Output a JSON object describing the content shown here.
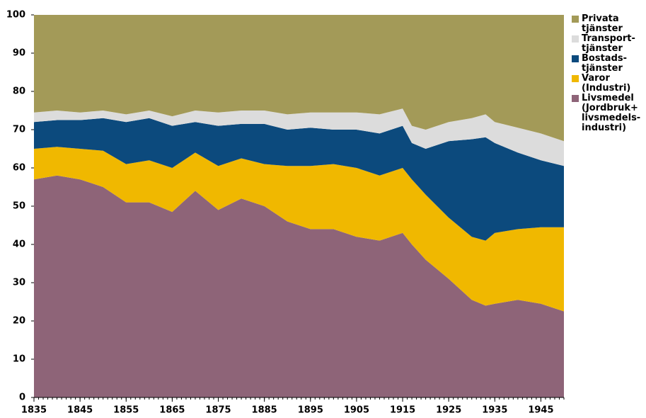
{
  "chart_data": {
    "type": "stacked_area",
    "x": [
      1835,
      1840,
      1845,
      1850,
      1855,
      1860,
      1865,
      1870,
      1875,
      1880,
      1885,
      1890,
      1895,
      1900,
      1905,
      1910,
      1915,
      1917,
      1920,
      1925,
      1930,
      1933,
      1935,
      1940,
      1945,
      1950
    ],
    "series": [
      {
        "name": "Livsmedel\n(Jordbruk+\nlivsmedels-\nindustri)",
        "color": "#8e6478",
        "values": [
          57,
          58,
          57,
          55,
          51,
          51,
          48.5,
          54,
          49,
          52,
          50,
          46,
          44,
          44,
          42,
          41,
          43,
          40,
          36,
          31,
          25.5,
          24,
          24.5,
          25.5,
          24.5,
          22.5
        ]
      },
      {
        "name": "Varor\n(Industri)",
        "color": "#f0b800",
        "values": [
          8,
          7.5,
          8,
          9.5,
          10,
          11,
          11.5,
          10,
          11.5,
          10.5,
          11,
          14.5,
          16.5,
          17,
          18,
          17,
          17,
          17,
          17,
          16,
          16.5,
          17,
          18.5,
          18.5,
          20,
          22
        ]
      },
      {
        "name": "Bostads-\ntjänster",
        "color": "#0c4a7d",
        "values": [
          7,
          7,
          7.5,
          8.5,
          11,
          11,
          11,
          8,
          10.5,
          9,
          10.5,
          9.5,
          10,
          9,
          10,
          11,
          11,
          9.5,
          12,
          20,
          25.5,
          27,
          23.5,
          20,
          17.5,
          16
        ]
      },
      {
        "name": "Transport-\ntjänster",
        "color": "#dcdcdc",
        "values": [
          2.5,
          2.5,
          2,
          2,
          2,
          2,
          2.5,
          3,
          3.5,
          3.5,
          3.5,
          4,
          4,
          4.5,
          4.5,
          5,
          4.5,
          4.5,
          5,
          5,
          5.5,
          6,
          5.5,
          6.5,
          7,
          6.5
        ]
      },
      {
        "name": "Privata\ntjänster",
        "color": "#a39a58",
        "values": [
          25.5,
          25,
          25.5,
          25,
          26,
          25,
          26.5,
          25,
          25.5,
          25,
          25,
          26,
          25.5,
          25.5,
          25.5,
          26,
          24.5,
          29,
          30,
          28,
          27,
          26,
          28,
          29.5,
          31,
          33
        ]
      }
    ],
    "xlim": [
      1835,
      1950
    ],
    "xticks": [
      1835,
      1845,
      1855,
      1865,
      1875,
      1885,
      1895,
      1905,
      1915,
      1925,
      1935,
      1945
    ],
    "ylim": [
      0,
      100
    ],
    "yticks": [
      0,
      10,
      20,
      30,
      40,
      50,
      60,
      70,
      80,
      90,
      100
    ],
    "legend": "right"
  }
}
